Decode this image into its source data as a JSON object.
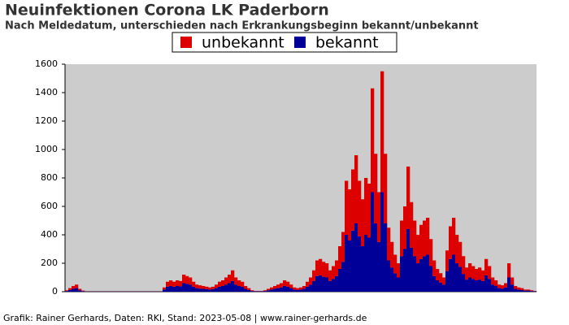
{
  "chart_data": {
    "type": "stacked_bar",
    "title": "Neuinfektionen Corona LK Paderborn",
    "subtitle": "Nach Meldedatum, unterschieden nach Erkrankungsbeginn bekannt/unbekannt",
    "footer": "Grafik: Rainer Gerhards, Daten: RKI, Stand: 2023-05-08 | www.rainer-gerhards.de",
    "categories": [
      null,
      null,
      null,
      null,
      null,
      null,
      null,
      null,
      null,
      null,
      null,
      null,
      null,
      null,
      null,
      null,
      null,
      null,
      null,
      null,
      null,
      null,
      null,
      null,
      null,
      null,
      null,
      null,
      null,
      null,
      null,
      null,
      null,
      null,
      null,
      null,
      null,
      null,
      null,
      null,
      null,
      null,
      null,
      null,
      null,
      null,
      null,
      null,
      null,
      null,
      null,
      null,
      null,
      null,
      null,
      null,
      null,
      null,
      null,
      null,
      null,
      null,
      null,
      null,
      null,
      null,
      null,
      null,
      null,
      null,
      null,
      null,
      null,
      null,
      null,
      null,
      null,
      null,
      null,
      null,
      null,
      null,
      null,
      null,
      null,
      null,
      null,
      null,
      null,
      null,
      null,
      null,
      null,
      null,
      null,
      null,
      null,
      null,
      null,
      null,
      null,
      null,
      null,
      null,
      null,
      null,
      null,
      null,
      null,
      null,
      null,
      null,
      null,
      null,
      null,
      null,
      null,
      null,
      null,
      null,
      null,
      null,
      null,
      null,
      null,
      null,
      null,
      null,
      null,
      null,
      null,
      null,
      null,
      null,
      null,
      null,
      null,
      null,
      null,
      null,
      null,
      null,
      null,
      null,
      null
    ],
    "series": [
      {
        "name": "bekannt",
        "color": "#000099",
        "values": [
          5,
          12,
          20,
          25,
          10,
          4,
          2,
          2,
          2,
          2,
          2,
          2,
          2,
          2,
          2,
          2,
          2,
          2,
          2,
          2,
          2,
          2,
          2,
          2,
          2,
          2,
          2,
          2,
          2,
          2,
          15,
          35,
          40,
          35,
          40,
          38,
          60,
          55,
          50,
          35,
          25,
          22,
          20,
          18,
          15,
          18,
          25,
          35,
          40,
          50,
          60,
          75,
          50,
          40,
          35,
          20,
          12,
          5,
          3,
          3,
          3,
          5,
          10,
          15,
          20,
          25,
          30,
          40,
          35,
          25,
          15,
          12,
          15,
          20,
          35,
          50,
          75,
          110,
          115,
          105,
          100,
          75,
          90,
          110,
          160,
          210,
          400,
          360,
          430,
          480,
          390,
          320,
          400,
          380,
          700,
          480,
          350,
          700,
          480,
          220,
          170,
          130,
          100,
          250,
          300,
          440,
          310,
          250,
          200,
          230,
          250,
          260,
          180,
          110,
          80,
          65,
          50,
          145,
          230,
          260,
          200,
          175,
          125,
          85,
          100,
          90,
          80,
          85,
          75,
          115,
          90,
          50,
          40,
          25,
          22,
          30,
          100,
          50,
          20,
          15,
          12,
          8,
          8,
          5,
          3
        ]
      },
      {
        "name": "unbekannt",
        "color": "#dd0000",
        "values": [
          5,
          13,
          20,
          25,
          10,
          4,
          1,
          1,
          1,
          1,
          1,
          1,
          1,
          1,
          1,
          1,
          1,
          1,
          1,
          1,
          1,
          1,
          1,
          1,
          1,
          1,
          1,
          1,
          1,
          1,
          15,
          35,
          40,
          35,
          40,
          37,
          60,
          55,
          50,
          35,
          25,
          23,
          20,
          17,
          15,
          17,
          25,
          35,
          40,
          50,
          60,
          75,
          50,
          40,
          35,
          20,
          13,
          5,
          2,
          2,
          2,
          5,
          10,
          15,
          20,
          25,
          30,
          40,
          35,
          25,
          15,
          13,
          15,
          20,
          35,
          50,
          75,
          110,
          115,
          105,
          100,
          75,
          90,
          110,
          160,
          210,
          380,
          360,
          430,
          480,
          390,
          330,
          400,
          380,
          730,
          490,
          350,
          850,
          490,
          230,
          180,
          130,
          100,
          250,
          300,
          440,
          320,
          250,
          200,
          240,
          250,
          260,
          190,
          110,
          80,
          65,
          50,
          145,
          230,
          260,
          200,
          175,
          125,
          85,
          100,
          90,
          80,
          85,
          75,
          115,
          90,
          50,
          40,
          25,
          23,
          30,
          100,
          50,
          20,
          15,
          13,
          7,
          7,
          5,
          2
        ]
      }
    ],
    "ylim": [
      0,
      1600
    ],
    "yticks": [
      0,
      200,
      400,
      600,
      800,
      1000,
      1200,
      1400,
      1600
    ],
    "legend": "top",
    "grid": false
  }
}
